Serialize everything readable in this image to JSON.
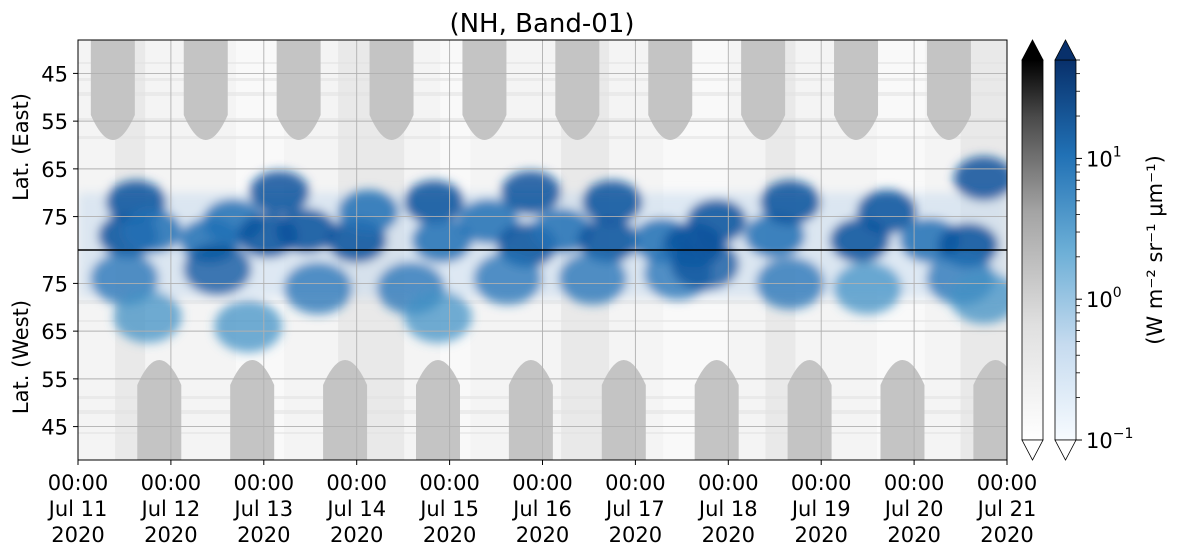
{
  "chart_data": {
    "type": "heatmap",
    "title": "(NH, Band-01)",
    "x_range": [
      "2020-07-11 00:00",
      "2020-07-21 00:00"
    ],
    "x_ticks": [
      {
        "time": "00:00",
        "day": "Jul 11",
        "year": "2020"
      },
      {
        "time": "00:00",
        "day": "Jul 12",
        "year": "2020"
      },
      {
        "time": "00:00",
        "day": "Jul 13",
        "year": "2020"
      },
      {
        "time": "00:00",
        "day": "Jul 14",
        "year": "2020"
      },
      {
        "time": "00:00",
        "day": "Jul 15",
        "year": "2020"
      },
      {
        "time": "00:00",
        "day": "Jul 16",
        "year": "2020"
      },
      {
        "time": "00:00",
        "day": "Jul 17",
        "year": "2020"
      },
      {
        "time": "00:00",
        "day": "Jul 18",
        "year": "2020"
      },
      {
        "time": "00:00",
        "day": "Jul 19",
        "year": "2020"
      },
      {
        "time": "00:00",
        "day": "Jul 20",
        "year": "2020"
      },
      {
        "time": "00:00",
        "day": "Jul 21",
        "year": "2020"
      }
    ],
    "upper_panel": {
      "ylabel": "Lat. (East)",
      "ticks": [
        "45",
        "55",
        "65",
        "75"
      ],
      "range": [
        38,
        82
      ]
    },
    "lower_panel": {
      "ylabel": "Lat. (West)",
      "ticks": [
        "75",
        "65",
        "55",
        "45"
      ],
      "range": [
        82,
        38
      ]
    },
    "colorbar": {
      "label": "(W m⁻² sr⁻¹ μm⁻¹)",
      "scale": "log",
      "range": [
        0.1,
        50
      ],
      "ticks": [
        {
          "base": "10",
          "exp": "1",
          "value": 10
        },
        {
          "base": "10",
          "exp": "0",
          "value": 1
        },
        {
          "base": "10",
          "exp": "−1",
          "value": 0.1
        }
      ],
      "cmaps": [
        "Greys",
        "Blues"
      ],
      "extend": "both"
    },
    "grid": true,
    "night_mask_color": "#c4c4c4",
    "day_centers_east": [
      "2020-07-11 09:00",
      "2020-07-12 09:00",
      "2020-07-13 09:00",
      "2020-07-14 09:00",
      "2020-07-15 09:00",
      "2020-07-16 09:00",
      "2020-07-17 09:00",
      "2020-07-18 09:00",
      "2020-07-19 09:00",
      "2020-07-20 09:00"
    ],
    "day_centers_west": [
      "2020-07-11 21:00",
      "2020-07-12 21:00",
      "2020-07-13 21:00",
      "2020-07-14 21:00",
      "2020-07-15 21:00",
      "2020-07-16 21:00",
      "2020-07-17 21:00",
      "2020-07-18 21:00",
      "2020-07-19 21:00",
      "2020-07-20 21:00"
    ],
    "blue_blobs": [
      {
        "t": "2020-07-11 13:00",
        "lat": 79,
        "v": 25
      },
      {
        "t": "2020-07-11 15:00",
        "lat": 72,
        "v": 12
      },
      {
        "t": "2020-07-11 19:00",
        "lat": 78,
        "v": 8
      },
      {
        "t": "2020-07-12 10:00",
        "lat": 80,
        "v": 6
      },
      {
        "t": "2020-07-12 16:00",
        "lat": 76,
        "v": 6
      },
      {
        "t": "2020-07-13 01:00",
        "lat": 79,
        "v": 18
      },
      {
        "t": "2020-07-13 04:00",
        "lat": 70,
        "v": 10
      },
      {
        "t": "2020-07-13 11:00",
        "lat": 78,
        "v": 9
      },
      {
        "t": "2020-07-14 00:00",
        "lat": 80,
        "v": 22
      },
      {
        "t": "2020-07-14 03:00",
        "lat": 74,
        "v": 8
      },
      {
        "t": "2020-07-14 20:00",
        "lat": 72,
        "v": 9
      },
      {
        "t": "2020-07-14 22:00",
        "lat": 80,
        "v": 8
      },
      {
        "t": "2020-07-15 10:00",
        "lat": 76,
        "v": 5
      },
      {
        "t": "2020-07-15 20:00",
        "lat": 81,
        "v": 25
      },
      {
        "t": "2020-07-15 21:00",
        "lat": 70,
        "v": 30
      },
      {
        "t": "2020-07-16 05:00",
        "lat": 78,
        "v": 8
      },
      {
        "t": "2020-07-16 17:00",
        "lat": 80,
        "v": 25
      },
      {
        "t": "2020-07-16 18:00",
        "lat": 72,
        "v": 12
      },
      {
        "t": "2020-07-17 07:00",
        "lat": 80,
        "v": 6
      },
      {
        "t": "2020-07-17 15:00",
        "lat": 81,
        "v": 22
      },
      {
        "t": "2020-07-17 21:00",
        "lat": 76,
        "v": 15
      },
      {
        "t": "2020-07-18 12:00",
        "lat": 79,
        "v": 8
      },
      {
        "t": "2020-07-18 16:00",
        "lat": 72,
        "v": 10
      },
      {
        "t": "2020-07-19 10:00",
        "lat": 80,
        "v": 12
      },
      {
        "t": "2020-07-19 17:00",
        "lat": 74,
        "v": 18
      },
      {
        "t": "2020-07-20 04:00",
        "lat": 80,
        "v": 8
      },
      {
        "t": "2020-07-20 14:00",
        "lat": 81,
        "v": 25
      },
      {
        "t": "2020-07-20 18:00",
        "lat": 67,
        "v": 15
      }
    ],
    "west_blobs": [
      {
        "t": "2020-07-11 12:00",
        "lat": 76,
        "v": 6
      },
      {
        "t": "2020-07-11 18:00",
        "lat": 68,
        "v": 4
      },
      {
        "t": "2020-07-12 12:00",
        "lat": 78,
        "v": 10
      },
      {
        "t": "2020-07-12 20:00",
        "lat": 66,
        "v": 4
      },
      {
        "t": "2020-07-13 14:00",
        "lat": 74,
        "v": 5
      },
      {
        "t": "2020-07-14 14:00",
        "lat": 74,
        "v": 5
      },
      {
        "t": "2020-07-14 21:00",
        "lat": 68,
        "v": 4
      },
      {
        "t": "2020-07-15 15:00",
        "lat": 76,
        "v": 6
      },
      {
        "t": "2020-07-16 13:00",
        "lat": 76,
        "v": 5
      },
      {
        "t": "2020-07-17 11:00",
        "lat": 77,
        "v": 5
      },
      {
        "t": "2020-07-17 18:00",
        "lat": 79,
        "v": 10
      },
      {
        "t": "2020-07-18 16:00",
        "lat": 75,
        "v": 6
      },
      {
        "t": "2020-07-19 12:00",
        "lat": 74,
        "v": 4
      },
      {
        "t": "2020-07-20 12:00",
        "lat": 76,
        "v": 6
      },
      {
        "t": "2020-07-20 18:00",
        "lat": 72,
        "v": 4
      }
    ]
  }
}
